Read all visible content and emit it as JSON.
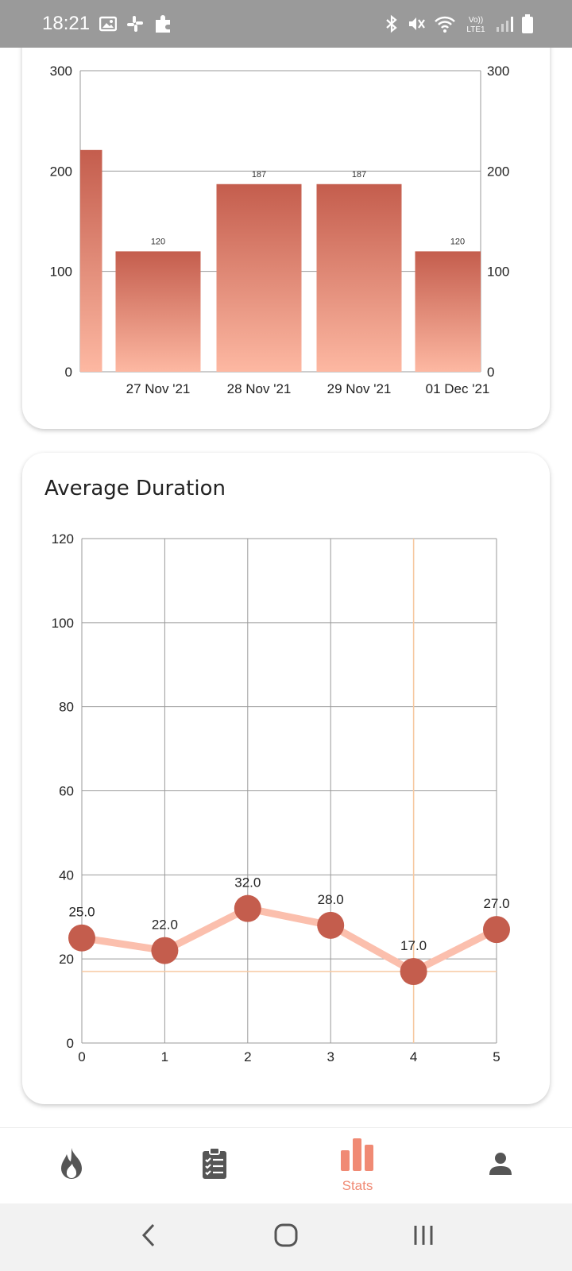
{
  "status_bar": {
    "time": "18:21",
    "left_icons": [
      "image-icon",
      "slack-icon",
      "puzzle-icon"
    ],
    "right_icons": [
      "bluetooth-icon",
      "mute-icon",
      "wifi-icon",
      "volte-icon",
      "signal-icon",
      "battery-icon"
    ],
    "volte_label": "Vo)) LTE1"
  },
  "chart_data": [
    {
      "type": "bar",
      "title": "",
      "categories": [
        "",
        "27 Nov '21",
        "28 Nov '21",
        "29 Nov '21",
        "01 Dec '21"
      ],
      "values": [
        221,
        120,
        187,
        187,
        120
      ],
      "data_labels": [
        "",
        "120",
        "187",
        "187",
        "120"
      ],
      "y_ticks": [
        "300",
        "200",
        "100",
        "0"
      ],
      "y_tick_values": [
        300,
        200,
        100,
        0
      ],
      "ylim": [
        0,
        300
      ],
      "dual_axis_labels": true,
      "grid": true,
      "colors": {
        "bar_top": "#c45d4d",
        "bar_bottom": "#fdb8a2",
        "grid": "#9a9a9a"
      }
    },
    {
      "type": "line",
      "title": "Average Duration",
      "x": [
        0,
        1,
        2,
        3,
        4,
        5
      ],
      "x_tick_labels": [
        "0",
        "1",
        "2",
        "3",
        "4",
        "5"
      ],
      "values": [
        25.0,
        22.0,
        32.0,
        28.0,
        17.0,
        27.0
      ],
      "data_labels": [
        "25.0",
        "22.0",
        "32.0",
        "28.0",
        "17.0",
        "27.0"
      ],
      "y_ticks": [
        "120",
        "100",
        "80",
        "60",
        "40",
        "20",
        "0"
      ],
      "y_tick_values": [
        120,
        100,
        80,
        60,
        40,
        20,
        0
      ],
      "ylim": [
        0,
        120
      ],
      "xlim": [
        0,
        5
      ],
      "highlight": {
        "x": 4,
        "y": 17.0
      },
      "grid": true,
      "colors": {
        "line": "#fbbfad",
        "point": "#c45d4d",
        "highlight": "#f7c9a0",
        "grid": "#9a9a9a"
      }
    }
  ],
  "bottom_nav": {
    "items": [
      {
        "icon": "flame-icon",
        "label": "",
        "active": false
      },
      {
        "icon": "clipboard-list-icon",
        "label": "",
        "active": false
      },
      {
        "icon": "bar-chart-icon",
        "label": "Stats",
        "active": true
      },
      {
        "icon": "person-icon",
        "label": "",
        "active": false
      }
    ],
    "active_color": "#f08a74",
    "inactive_color": "#555555"
  },
  "system_nav": {
    "buttons": [
      "back-icon",
      "home-icon",
      "recents-icon"
    ]
  }
}
